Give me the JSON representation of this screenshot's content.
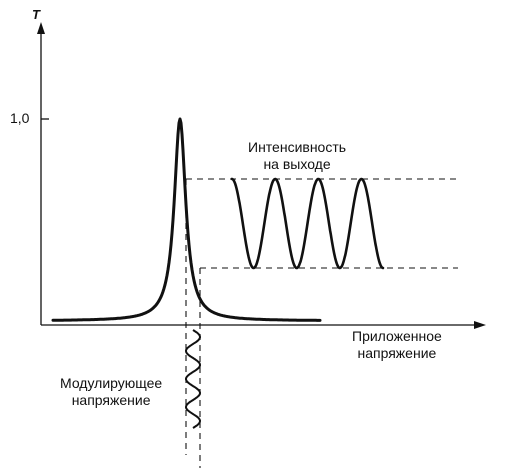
{
  "figure": {
    "y_axis_label": "T",
    "y_tick_label": "1,0",
    "output_label_line1": "Интенсивность",
    "output_label_line2": "на выходе",
    "x_axis_label_line1": "Приложенное",
    "x_axis_label_line2": "напряжение",
    "mod_label_line1": "Модулирующее",
    "mod_label_line2": "напряжение"
  },
  "transmission_curve": {
    "peak_T": 1.0,
    "output_max_T": 0.7,
    "output_min_T": 0.28,
    "output_cycles": 3.5,
    "modulation_cycles": 3.5
  }
}
